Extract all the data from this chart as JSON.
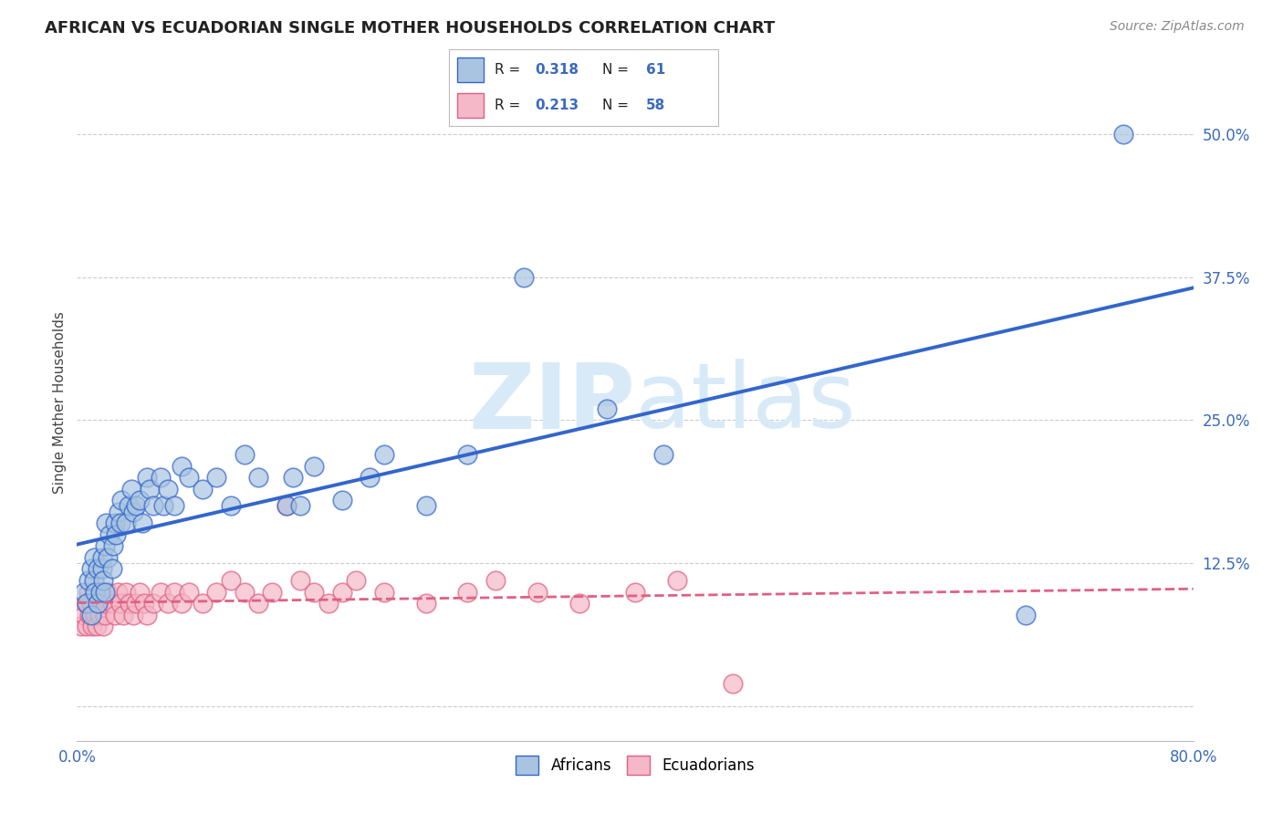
{
  "title": "AFRICAN VS ECUADORIAN SINGLE MOTHER HOUSEHOLDS CORRELATION CHART",
  "source": "Source: ZipAtlas.com",
  "ylabel": "Single Mother Households",
  "xlim": [
    0.0,
    0.8
  ],
  "ylim": [
    -0.03,
    0.56
  ],
  "african_R": 0.318,
  "african_N": 61,
  "ecuadorian_R": 0.213,
  "ecuadorian_N": 58,
  "african_color": "#a8c4e0",
  "ecuadorian_color": "#f4b8c8",
  "african_line_color": "#3366cc",
  "ecuadorian_line_color": "#e06080",
  "watermark_color": "#d8eaf8",
  "background_color": "#ffffff",
  "grid_color": "#cccccc",
  "african_x": [
    0.005,
    0.007,
    0.008,
    0.01,
    0.01,
    0.012,
    0.012,
    0.013,
    0.015,
    0.015,
    0.017,
    0.018,
    0.018,
    0.019,
    0.02,
    0.02,
    0.021,
    0.022,
    0.023,
    0.025,
    0.026,
    0.027,
    0.028,
    0.03,
    0.031,
    0.032,
    0.035,
    0.037,
    0.039,
    0.04,
    0.042,
    0.045,
    0.047,
    0.05,
    0.052,
    0.055,
    0.06,
    0.062,
    0.065,
    0.07,
    0.075,
    0.08,
    0.09,
    0.1,
    0.11,
    0.12,
    0.13,
    0.15,
    0.155,
    0.16,
    0.17,
    0.19,
    0.21,
    0.22,
    0.25,
    0.28,
    0.32,
    0.38,
    0.42,
    0.68,
    0.75
  ],
  "african_y": [
    0.1,
    0.09,
    0.11,
    0.12,
    0.08,
    0.11,
    0.13,
    0.1,
    0.12,
    0.09,
    0.1,
    0.12,
    0.13,
    0.11,
    0.14,
    0.1,
    0.16,
    0.13,
    0.15,
    0.12,
    0.14,
    0.16,
    0.15,
    0.17,
    0.16,
    0.18,
    0.16,
    0.175,
    0.19,
    0.17,
    0.175,
    0.18,
    0.16,
    0.2,
    0.19,
    0.175,
    0.2,
    0.175,
    0.19,
    0.175,
    0.21,
    0.2,
    0.19,
    0.2,
    0.175,
    0.22,
    0.2,
    0.175,
    0.2,
    0.175,
    0.21,
    0.18,
    0.2,
    0.22,
    0.175,
    0.22,
    0.375,
    0.26,
    0.22,
    0.08,
    0.5
  ],
  "ecuadorian_x": [
    0.003,
    0.005,
    0.006,
    0.007,
    0.008,
    0.009,
    0.01,
    0.011,
    0.012,
    0.013,
    0.014,
    0.015,
    0.016,
    0.017,
    0.018,
    0.019,
    0.02,
    0.021,
    0.022,
    0.025,
    0.027,
    0.029,
    0.031,
    0.033,
    0.035,
    0.038,
    0.04,
    0.042,
    0.045,
    0.048,
    0.05,
    0.055,
    0.06,
    0.065,
    0.07,
    0.075,
    0.08,
    0.09,
    0.1,
    0.11,
    0.12,
    0.13,
    0.14,
    0.15,
    0.16,
    0.17,
    0.18,
    0.19,
    0.2,
    0.22,
    0.25,
    0.28,
    0.3,
    0.33,
    0.36,
    0.4,
    0.43,
    0.47
  ],
  "ecuadorian_y": [
    0.07,
    0.08,
    0.09,
    0.07,
    0.1,
    0.08,
    0.09,
    0.07,
    0.1,
    0.08,
    0.07,
    0.09,
    0.08,
    0.1,
    0.09,
    0.07,
    0.08,
    0.09,
    0.1,
    0.09,
    0.08,
    0.1,
    0.09,
    0.08,
    0.1,
    0.09,
    0.08,
    0.09,
    0.1,
    0.09,
    0.08,
    0.09,
    0.1,
    0.09,
    0.1,
    0.09,
    0.1,
    0.09,
    0.1,
    0.11,
    0.1,
    0.09,
    0.1,
    0.175,
    0.11,
    0.1,
    0.09,
    0.1,
    0.11,
    0.1,
    0.09,
    0.1,
    0.11,
    0.1,
    0.09,
    0.1,
    0.11,
    0.02
  ]
}
